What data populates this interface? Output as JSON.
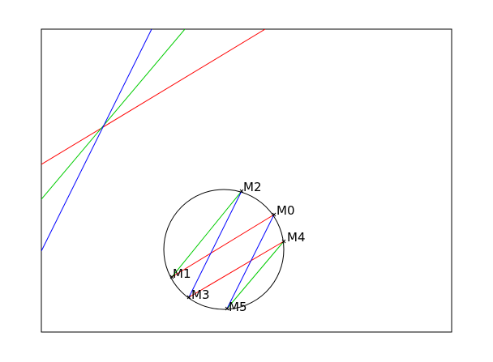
{
  "diagram": {
    "points": [
      {
        "id": "M1",
        "label": "M1"
      },
      {
        "id": "M2",
        "label": "M2"
      },
      {
        "id": "M3",
        "label": "M3"
      },
      {
        "id": "M4",
        "label": "M4"
      },
      {
        "id": "M5",
        "label": "M5"
      },
      {
        "id": "M0",
        "label": "M0"
      }
    ],
    "line_colors": {
      "red": "#ff0000",
      "green": "#00cc00",
      "blue": "#0000ff"
    },
    "segments": [
      {
        "from": "M1",
        "to": "M0",
        "color": "red"
      },
      {
        "from": "M3",
        "to": "M4",
        "color": "red"
      },
      {
        "from": "M1",
        "to": "M2",
        "color": "green"
      },
      {
        "from": "M5",
        "to": "M4",
        "color": "green"
      },
      {
        "from": "M3",
        "to": "M2",
        "color": "blue"
      },
      {
        "from": "M5",
        "to": "M0",
        "color": "blue"
      }
    ]
  }
}
